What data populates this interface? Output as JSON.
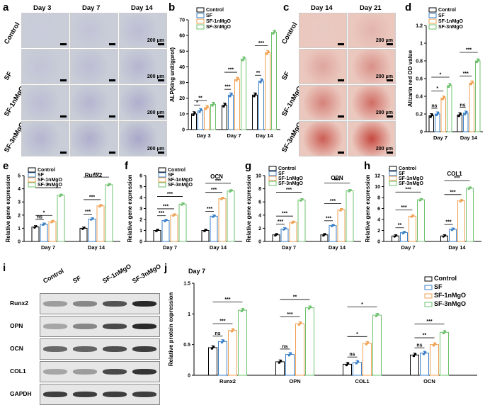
{
  "panels": {
    "a": "a",
    "b": "b",
    "c": "c",
    "d": "d",
    "e": "e",
    "f": "f",
    "g": "g",
    "h": "h",
    "i": "i",
    "j": "j"
  },
  "legend_labels": [
    "Control",
    "SF",
    "SF-1nMgO",
    "SF-3nMgO"
  ],
  "colors": {
    "Control": "#000000",
    "SF": "#3a7fc7",
    "SF-1nMgO": "#f0a050",
    "SF-3nMgO": "#6cc06c"
  },
  "micro_a": {
    "cols": [
      "Day 3",
      "Day 7",
      "Day 14"
    ],
    "rows": [
      "Control",
      "SF",
      "SF-1nMgO",
      "SF-3nMgO"
    ],
    "scale": "200 μm"
  },
  "micro_c": {
    "cols": [
      "Day 14",
      "Day 21"
    ],
    "rows": [
      "Control",
      "SF",
      "SF-1nMgO",
      "SF-3nMgO"
    ],
    "scale": "200 μm"
  },
  "western": {
    "cols": [
      "Control",
      "SF",
      "SF-1nMgO",
      "SF-3nMgO"
    ],
    "rows": [
      "Runx2",
      "OPN",
      "OCN",
      "COL1",
      "GAPDH"
    ]
  },
  "chart_data": [
    {
      "id": "b",
      "type": "bar",
      "ylabel": "ALP(king unit/gprot)",
      "categories": [
        "Day 3",
        "Day 7",
        "Day 14"
      ],
      "ylim": [
        0,
        70
      ],
      "yticks": [
        0,
        10,
        20,
        30,
        40,
        50,
        60,
        70
      ],
      "series": [
        {
          "name": "Control",
          "values": [
            10,
            15.5,
            22
          ]
        },
        {
          "name": "SF",
          "values": [
            12,
            22,
            31
          ]
        },
        {
          "name": "SF-1nMgO",
          "values": [
            14,
            32,
            49
          ]
        },
        {
          "name": "SF-3nMgO",
          "values": [
            16,
            45,
            62
          ]
        }
      ],
      "sig": [
        [
          "*",
          "**"
        ],
        [
          "***",
          "***"
        ],
        [
          "**",
          "***"
        ]
      ]
    },
    {
      "id": "d",
      "type": "bar",
      "ylabel": "Alizarin red OD value",
      "categories": [
        "Day 7",
        "Day 14"
      ],
      "ylim": [
        0,
        1.2
      ],
      "yticks": [
        0,
        0.2,
        0.4,
        0.6,
        0.8,
        1.0,
        1.2
      ],
      "series": [
        {
          "name": "Control",
          "values": [
            0.18,
            0.19
          ]
        },
        {
          "name": "SF",
          "values": [
            0.2,
            0.21
          ]
        },
        {
          "name": "SF-1nMgO",
          "values": [
            0.38,
            0.55
          ]
        },
        {
          "name": "SF-3nMgO",
          "values": [
            0.52,
            0.8
          ]
        }
      ],
      "sig": [
        [
          "ns",
          "*",
          "*"
        ],
        [
          "ns",
          "***",
          "***"
        ]
      ]
    },
    {
      "id": "e",
      "type": "bar",
      "title": "Runx2",
      "ylabel": "Relative gene expression",
      "categories": [
        "Day 7",
        "Day 14"
      ],
      "ylim": [
        0,
        5
      ],
      "yticks": [
        0,
        1,
        2,
        3,
        4,
        5
      ],
      "series": [
        {
          "name": "Control",
          "values": [
            1.1,
            1.0
          ]
        },
        {
          "name": "SF",
          "values": [
            1.3,
            1.7
          ]
        },
        {
          "name": "SF-1nMgO",
          "values": [
            1.5,
            2.7
          ]
        },
        {
          "name": "SF-3nMgO",
          "values": [
            3.5,
            4.3
          ]
        }
      ],
      "sig": [
        [
          "ns",
          "*",
          "*"
        ],
        [
          "***",
          "***",
          "***"
        ]
      ]
    },
    {
      "id": "f",
      "type": "bar",
      "title": "OCN",
      "ylabel": "Relative gene expression",
      "categories": [
        "Day 7",
        "Day 14"
      ],
      "ylim": [
        0,
        6
      ],
      "yticks": [
        0,
        1,
        2,
        3,
        4,
        5,
        6
      ],
      "series": [
        {
          "name": "Control",
          "values": [
            1.0,
            1.0
          ]
        },
        {
          "name": "SF",
          "values": [
            1.9,
            2.3
          ]
        },
        {
          "name": "SF-1nMgO",
          "values": [
            2.4,
            3.9
          ]
        },
        {
          "name": "SF-3nMgO",
          "values": [
            3.4,
            4.6
          ]
        }
      ],
      "sig": [
        [
          "***",
          "***",
          "***"
        ],
        [
          "***",
          "***",
          "***"
        ]
      ]
    },
    {
      "id": "g",
      "type": "bar",
      "title": "OPN",
      "ylabel": "Relative gene expression",
      "categories": [
        "Day 7",
        "Day 14"
      ],
      "ylim": [
        0,
        10
      ],
      "yticks": [
        0,
        2,
        4,
        6,
        8,
        10
      ],
      "series": [
        {
          "name": "Control",
          "values": [
            1.0,
            1.0
          ]
        },
        {
          "name": "SF",
          "values": [
            1.9,
            2.4
          ]
        },
        {
          "name": "SF-1nMgO",
          "values": [
            2.9,
            4.8
          ]
        },
        {
          "name": "SF-3nMgO",
          "values": [
            6.3,
            7.7
          ]
        }
      ],
      "sig": [
        [
          "***",
          "***",
          "***"
        ],
        [
          "***",
          "***",
          "***"
        ]
      ]
    },
    {
      "id": "h",
      "type": "bar",
      "title": "COL1",
      "ylabel": "Relative gene expression",
      "categories": [
        "Day 7",
        "Day 14"
      ],
      "ylim": [
        0,
        12
      ],
      "yticks": [
        0,
        2,
        4,
        6,
        8,
        10,
        12
      ],
      "series": [
        {
          "name": "Control",
          "values": [
            1.0,
            1.0
          ]
        },
        {
          "name": "SF",
          "values": [
            1.6,
            2.2
          ]
        },
        {
          "name": "SF-1nMgO",
          "values": [
            4.6,
            7.4
          ]
        },
        {
          "name": "SF-3nMgO",
          "values": [
            7.6,
            9.7
          ]
        }
      ],
      "sig": [
        [
          "**",
          "***",
          "***"
        ],
        [
          "***",
          "***",
          "***"
        ]
      ]
    },
    {
      "id": "j",
      "type": "bar",
      "title": "Day 7",
      "ylabel": "Relative protein expression",
      "categories": [
        "Runx2",
        "OPN",
        "COL1",
        "OCN"
      ],
      "ylim": [
        0,
        1.5
      ],
      "yticks": [
        0,
        0.5,
        1.0,
        1.5
      ],
      "series": [
        {
          "name": "Control",
          "values": [
            0.45,
            0.22,
            0.18,
            0.33
          ]
        },
        {
          "name": "SF",
          "values": [
            0.55,
            0.34,
            0.21,
            0.36
          ]
        },
        {
          "name": "SF-1nMgO",
          "values": [
            0.73,
            0.84,
            0.52,
            0.5
          ]
        },
        {
          "name": "SF-3nMgO",
          "values": [
            1.06,
            1.1,
            0.98,
            0.7
          ]
        }
      ],
      "sig": [
        [
          "ns",
          "***",
          "***"
        ],
        [
          "ns",
          "***",
          "**"
        ],
        [
          "ns",
          "*",
          "*"
        ],
        [
          "ns",
          "**",
          "***"
        ]
      ]
    }
  ]
}
